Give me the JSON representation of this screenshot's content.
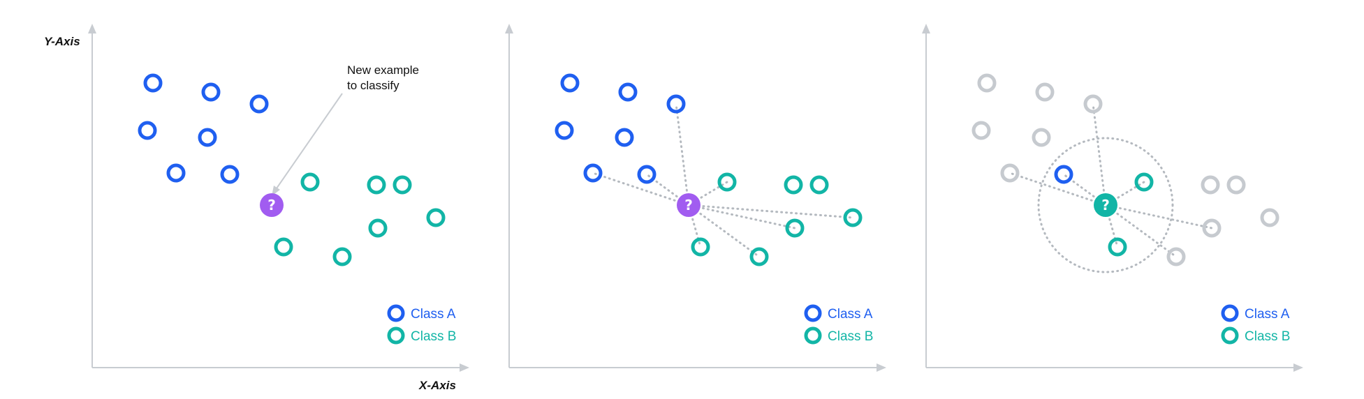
{
  "colors": {
    "class_a": "#1f5ff0",
    "class_b": "#12b5a6",
    "unknown": "#a15cf0",
    "faded": "#c6cacf",
    "axis": "#c8ccd1",
    "dotted": "#b4b9bf"
  },
  "axes": {
    "y_label": "Y-Axis",
    "x_label": "X-Axis"
  },
  "annotation": {
    "line1": "New example",
    "line2": "to classify"
  },
  "legend": {
    "class_a": "Class A",
    "class_b": "Class B"
  },
  "query_glyph": "?",
  "panels": [
    {
      "name": "new-example",
      "query_class": "unknown",
      "show_links": false,
      "show_radius": false,
      "highlight_neighbors_only": false
    },
    {
      "name": "distances",
      "query_class": "unknown",
      "show_links": true,
      "show_radius": false,
      "highlight_neighbors_only": false
    },
    {
      "name": "nearest-neighbors",
      "query_class": "class_b",
      "show_links": true,
      "show_radius": true,
      "highlight_neighbors_only": true
    }
  ]
}
